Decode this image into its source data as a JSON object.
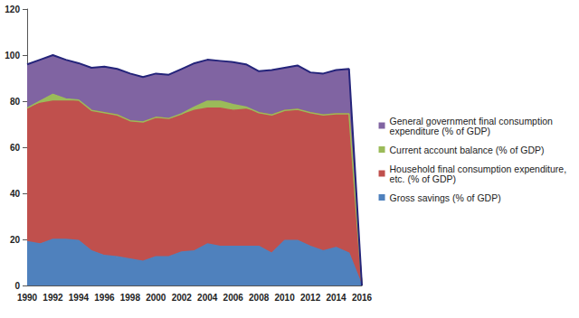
{
  "chart_data": {
    "type": "area",
    "stacked": true,
    "grid": false,
    "legend": "right",
    "categories": [
      "1990",
      null,
      "1992",
      null,
      "1994",
      null,
      "1996",
      null,
      "1998",
      null,
      "2000",
      null,
      "2002",
      null,
      "2004",
      null,
      "2006",
      null,
      "2008",
      null,
      "2010",
      null,
      "2012",
      null,
      "2014",
      null,
      "2016"
    ],
    "ylim": [
      0,
      120
    ],
    "yticks": [
      0,
      20,
      40,
      60,
      80,
      100,
      120
    ],
    "series": [
      {
        "name": "Gross savings (% of GDP)",
        "color": "#4f81bd",
        "values": [
          19,
          18,
          20,
          20,
          19.5,
          15,
          13,
          12.5,
          11.5,
          10.5,
          12.5,
          12.5,
          14.5,
          15,
          18,
          17,
          17,
          17,
          17,
          14,
          19.5,
          19.5,
          17,
          15,
          16.5,
          14,
          0
        ]
      },
      {
        "name": "Household final consumption expenditure, etc. (% of GDP)",
        "color": "#c0504d",
        "values": [
          58,
          61,
          60,
          60,
          60.5,
          61,
          62,
          61.5,
          60,
          60.5,
          60.5,
          60,
          59.5,
          61,
          59,
          60,
          59,
          59.5,
          58,
          60,
          56.5,
          57,
          58,
          59,
          58,
          60.5,
          0
        ]
      },
      {
        "name": "Current account balance (% of GDP)",
        "color": "#9bbb59",
        "values": [
          0,
          1,
          3,
          1,
          0.5,
          0,
          0,
          0,
          0,
          0,
          0,
          0,
          0.5,
          1.5,
          3,
          3,
          2.5,
          1,
          0,
          0,
          0,
          0,
          0,
          0,
          0,
          0,
          0
        ]
      },
      {
        "name": "General government final consumption expenditure (% of GDP)",
        "color": "#8064a2",
        "values": [
          19,
          18,
          17,
          17,
          16,
          18.5,
          20,
          20,
          20.5,
          19.5,
          19,
          19,
          19.5,
          19,
          18,
          17.5,
          18.5,
          18.5,
          18,
          19.5,
          18.5,
          19,
          17.5,
          18,
          19,
          19.5,
          0
        ]
      }
    ]
  }
}
